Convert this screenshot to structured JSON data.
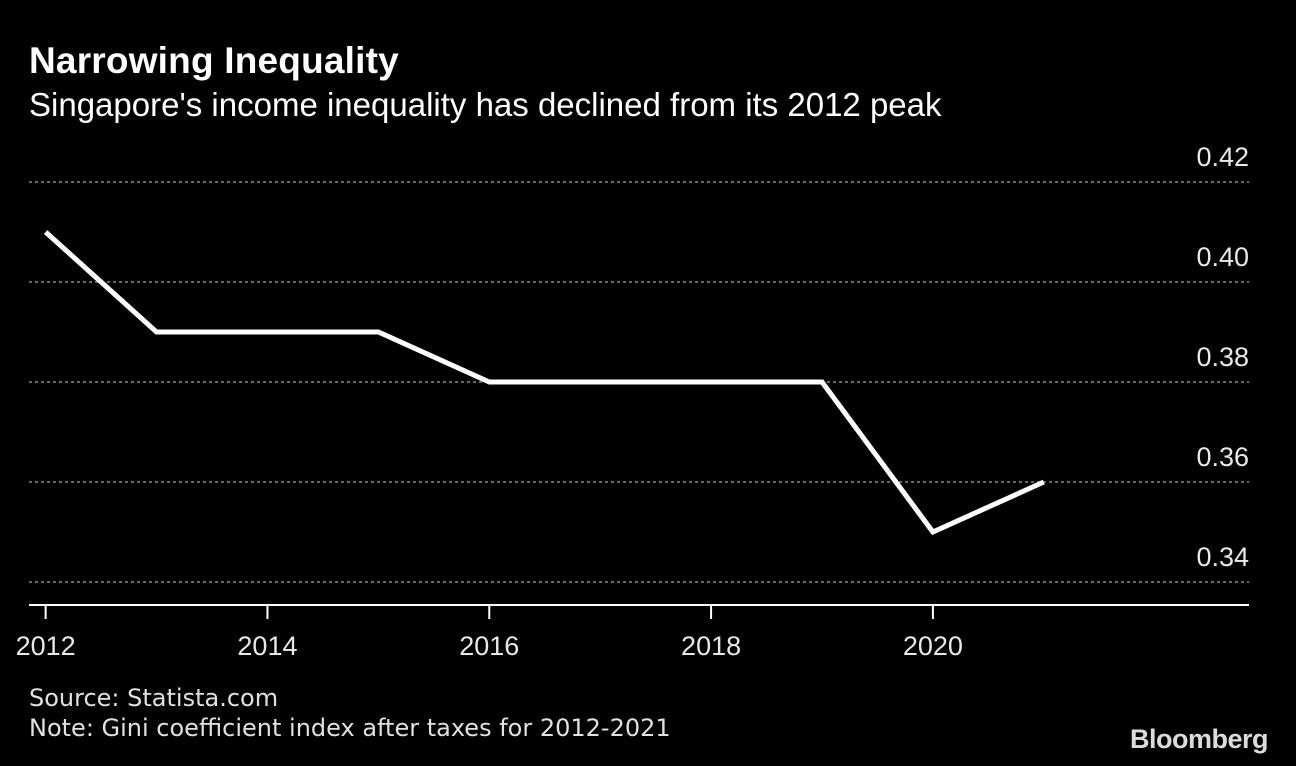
{
  "title": "Narrowing Inequality",
  "subtitle": "Singapore's income inequality has declined from its 2012 peak",
  "footer": {
    "source": "Source: Statista.com",
    "note": "Note: Gini coefficient index after taxes for 2012-2021",
    "brand": "Bloomberg"
  },
  "colors": {
    "background": "#000000",
    "line": "#ffffff",
    "grid": "#8a8a8a",
    "text": "#e8e8e8"
  },
  "chart_data": {
    "type": "line",
    "title": "Narrowing Inequality",
    "subtitle": "Singapore's income inequality has declined from its 2012 peak",
    "xlabel": "",
    "ylabel": "",
    "x": [
      2012,
      2013,
      2014,
      2015,
      2016,
      2017,
      2018,
      2019,
      2020,
      2021
    ],
    "series": [
      {
        "name": "Gini coefficient (after taxes)",
        "values": [
          0.41,
          0.39,
          0.39,
          0.39,
          0.38,
          0.38,
          0.38,
          0.38,
          0.35,
          0.36
        ]
      }
    ],
    "xlim": [
      2011.85,
      2022.85
    ],
    "ylim": [
      0.335,
      0.425
    ],
    "y_ticks": [
      0.34,
      0.36,
      0.38,
      0.4,
      0.42
    ],
    "y_tick_labels": [
      "0.34",
      "0.36",
      "0.38",
      "0.40",
      "0.42"
    ],
    "x_ticks": [
      2012,
      2014,
      2016,
      2018,
      2020
    ],
    "x_tick_labels": [
      "2012",
      "2014",
      "2016",
      "2018",
      "2020"
    ],
    "grid": true,
    "y_axis_position": "right"
  }
}
